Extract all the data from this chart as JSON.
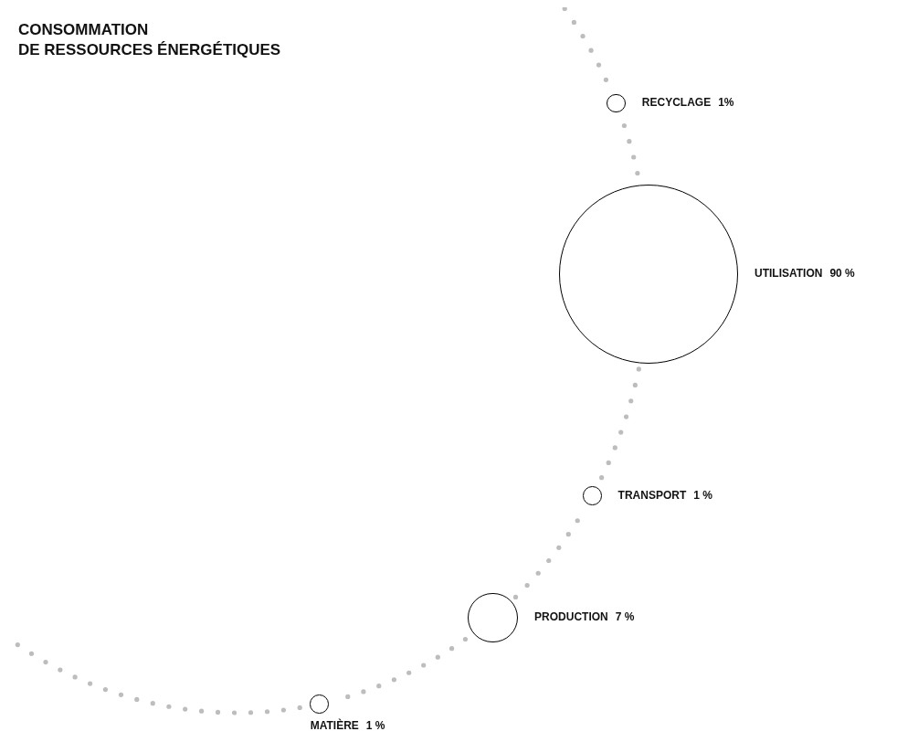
{
  "chart_data": {
    "type": "other",
    "title": "CONSOMMATION\nDE RESSOURCES ÉNERGÉTIQUES",
    "categories": [
      "RECYCLAGE",
      "UTILISATION",
      "TRANSPORT",
      "PRODUCTION",
      "MATIÈRE"
    ],
    "values": [
      1,
      90,
      1,
      7,
      1
    ],
    "value_labels": [
      "1%",
      "90 %",
      "1 %",
      "7 %",
      "1 %"
    ],
    "color": "#000000"
  }
}
